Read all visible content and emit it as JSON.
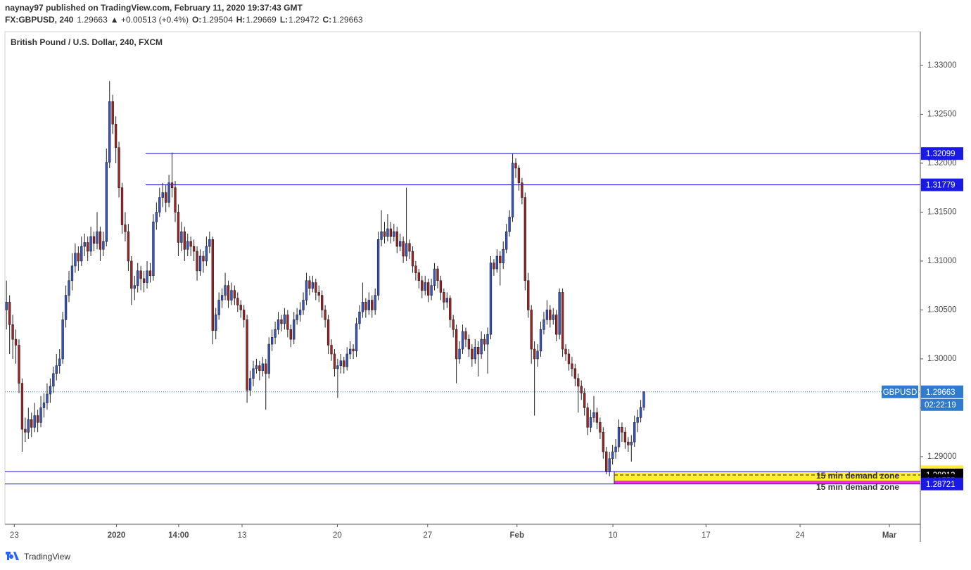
{
  "header": {
    "publisher": "naynay97 published on TradingView.com, February 11, 2020 19:37:43 GMT",
    "symbol": "FX:GBPUSD, 240",
    "last": "1.29663",
    "change": "▲ +0.00513 (+0.4%)",
    "ohlc": [
      {
        "key": "O:",
        "value": "1.29504"
      },
      {
        "key": "H:",
        "value": "1.29669"
      },
      {
        "key": "L:",
        "value": "1.29472"
      },
      {
        "key": "C:",
        "value": "1.29663"
      }
    ]
  },
  "footer": {
    "brand": "TradingView"
  },
  "chart_data": {
    "type": "candlestick",
    "title": "British Pound / U.S. Dollar, 240, FXCM",
    "up_color": "#3556c8",
    "down_color": "#a32222",
    "level_color": "#1a1ae6",
    "ylim": [
      1.28309,
      1.33345
    ],
    "yticks": [
      {
        "value": 1.29,
        "label": "1.29000"
      },
      {
        "value": 1.295,
        "label": "1.29500"
      },
      {
        "value": 1.3,
        "label": "1.30000"
      },
      {
        "value": 1.305,
        "label": "1.30500"
      },
      {
        "value": 1.31,
        "label": "1.31000"
      },
      {
        "value": 1.315,
        "label": "1.31500"
      },
      {
        "value": 1.32,
        "label": "1.32000"
      },
      {
        "value": 1.325,
        "label": "1.32500"
      },
      {
        "value": 1.33,
        "label": "1.33000"
      }
    ],
    "xlim": [
      -0.5,
      292.5
    ],
    "xticks": [
      {
        "value": 2.5,
        "label": "23"
      },
      {
        "value": 35.2,
        "label": "2020"
      },
      {
        "value": 55.1,
        "label": "14:00"
      },
      {
        "value": 75.4,
        "label": "13"
      },
      {
        "value": 105.9,
        "label": "20"
      },
      {
        "value": 134.8,
        "label": "27"
      },
      {
        "value": 163.4,
        "label": "Feb"
      },
      {
        "value": 194.1,
        "label": "10"
      },
      {
        "value": 223.9,
        "label": "17"
      },
      {
        "value": 254,
        "label": "24"
      },
      {
        "value": 282.6,
        "label": "Mar"
      }
    ],
    "price_levels": [
      {
        "value": 1.32099,
        "label": "1.32099"
      },
      {
        "value": 1.31779,
        "label": "1.31779"
      }
    ],
    "demand_zone": {
      "text": "15 min demand zone",
      "bounds": [
        {
          "value": 1.28847,
          "label": "1.28847"
        },
        {
          "value": 1.28813,
          "label": "1.28813"
        },
        {
          "value": 1.28755,
          "label": "1.28755"
        },
        {
          "value": 1.28721,
          "label": "1.28721"
        }
      ],
      "colors": [
        "#ffee33",
        "#e633e6"
      ]
    },
    "last_price": {
      "symbol": "GBPUSD",
      "price": {
        "value": 1.29663,
        "label": "1.29663"
      },
      "countdown": "02:22:19",
      "color": "#2f7bd0"
    },
    "candles": [
      [
        1.305,
        1.308,
        1.303,
        1.3058
      ],
      [
        1.3058,
        1.3065,
        1.3005,
        1.3035
      ],
      [
        1.3035,
        1.3045,
        1.3,
        1.302
      ],
      [
        1.302,
        1.303,
        1.2995,
        1.3014
      ],
      [
        1.3014,
        1.302,
        1.2965,
        1.2975
      ],
      [
        1.2975,
        1.298,
        1.2905,
        1.2928
      ],
      [
        1.2928,
        1.294,
        1.2915,
        1.2925
      ],
      [
        1.2925,
        1.295,
        1.2918,
        1.2938
      ],
      [
        1.2938,
        1.2945,
        1.292,
        1.293
      ],
      [
        1.293,
        1.2955,
        1.2925,
        1.2942
      ],
      [
        1.2942,
        1.2948,
        1.2925,
        1.2935
      ],
      [
        1.2935,
        1.2962,
        1.293,
        1.295
      ],
      [
        1.295,
        1.2965,
        1.294,
        1.2955
      ],
      [
        1.2955,
        1.2975,
        1.2948,
        1.2964
      ],
      [
        1.2964,
        1.298,
        1.2955,
        1.2972
      ],
      [
        1.2972,
        1.2992,
        1.2965,
        1.2985
      ],
      [
        1.2985,
        1.3005,
        1.2978,
        1.2993
      ],
      [
        1.2993,
        1.301,
        1.2985,
        1.3
      ],
      [
        1.3,
        1.3048,
        1.2995,
        1.304
      ],
      [
        1.304,
        1.3075,
        1.3032,
        1.3065
      ],
      [
        1.3065,
        1.309,
        1.3058,
        1.308
      ],
      [
        1.308,
        1.3108,
        1.307,
        1.3095
      ],
      [
        1.3095,
        1.3118,
        1.3088,
        1.3108
      ],
      [
        1.3108,
        1.3115,
        1.309,
        1.31
      ],
      [
        1.31,
        1.3125,
        1.3095,
        1.3115
      ],
      [
        1.3115,
        1.3128,
        1.3105,
        1.3119
      ],
      [
        1.3119,
        1.3125,
        1.31,
        1.311
      ],
      [
        1.311,
        1.3135,
        1.3105,
        1.3125
      ],
      [
        1.3125,
        1.313,
        1.311,
        1.3118
      ],
      [
        1.3118,
        1.315,
        1.3112,
        1.313
      ],
      [
        1.313,
        1.3135,
        1.31,
        1.3112
      ],
      [
        1.3112,
        1.313,
        1.3105,
        1.312
      ],
      [
        1.312,
        1.3215,
        1.3115,
        1.3201
      ],
      [
        1.3201,
        1.3284,
        1.3195,
        1.3263
      ],
      [
        1.3263,
        1.327,
        1.323,
        1.324
      ],
      [
        1.324,
        1.3248,
        1.32,
        1.3216
      ],
      [
        1.3216,
        1.3222,
        1.3165,
        1.3175
      ],
      [
        1.3175,
        1.318,
        1.3128,
        1.3137
      ],
      [
        1.3137,
        1.315,
        1.312,
        1.313
      ],
      [
        1.313,
        1.3138,
        1.309,
        1.31
      ],
      [
        1.31,
        1.3105,
        1.3055,
        1.3072
      ],
      [
        1.3072,
        1.3085,
        1.306,
        1.3075
      ],
      [
        1.3075,
        1.3098,
        1.3068,
        1.309
      ],
      [
        1.309,
        1.3095,
        1.307,
        1.3082
      ],
      [
        1.3082,
        1.309,
        1.3068,
        1.3078
      ],
      [
        1.3078,
        1.31,
        1.3072,
        1.309
      ],
      [
        1.309,
        1.3098,
        1.3078,
        1.3085
      ],
      [
        1.3085,
        1.3148,
        1.308,
        1.314
      ],
      [
        1.314,
        1.316,
        1.3132,
        1.315
      ],
      [
        1.315,
        1.3175,
        1.3145,
        1.3165
      ],
      [
        1.3165,
        1.318,
        1.3155,
        1.317
      ],
      [
        1.317,
        1.3178,
        1.315,
        1.316
      ],
      [
        1.316,
        1.3188,
        1.3155,
        1.318
      ],
      [
        1.318,
        1.3211,
        1.3165,
        1.3175
      ],
      [
        1.3175,
        1.3182,
        1.314,
        1.315
      ],
      [
        1.315,
        1.3158,
        1.3105,
        1.3119
      ],
      [
        1.3119,
        1.314,
        1.311,
        1.313
      ],
      [
        1.313,
        1.3135,
        1.31,
        1.3112
      ],
      [
        1.3112,
        1.3128,
        1.3105,
        1.312
      ],
      [
        1.312,
        1.3125,
        1.3105,
        1.3115
      ],
      [
        1.3115,
        1.3122,
        1.31,
        1.311
      ],
      [
        1.311,
        1.3115,
        1.308,
        1.309
      ],
      [
        1.309,
        1.3112,
        1.3085,
        1.3105
      ],
      [
        1.3105,
        1.311,
        1.3088,
        1.31
      ],
      [
        1.31,
        1.3125,
        1.3095,
        1.3115
      ],
      [
        1.3115,
        1.313,
        1.3108,
        1.3122
      ],
      [
        1.3122,
        1.3125,
        1.3015,
        1.3029
      ],
      [
        1.3029,
        1.3052,
        1.302,
        1.3045
      ],
      [
        1.3045,
        1.3068,
        1.304,
        1.306
      ],
      [
        1.306,
        1.3072,
        1.3052,
        1.3065
      ],
      [
        1.3065,
        1.3088,
        1.306,
        1.3075
      ],
      [
        1.3075,
        1.308,
        1.3052,
        1.306
      ],
      [
        1.306,
        1.3078,
        1.3055,
        1.307
      ],
      [
        1.307,
        1.3075,
        1.3055,
        1.3062
      ],
      [
        1.3062,
        1.3068,
        1.3048,
        1.3055
      ],
      [
        1.3055,
        1.306,
        1.3042,
        1.305
      ],
      [
        1.305,
        1.3055,
        1.3032,
        1.304
      ],
      [
        1.304,
        1.3045,
        1.2955,
        1.2968
      ],
      [
        1.2968,
        1.2988,
        1.2962,
        1.298
      ],
      [
        1.298,
        1.2998,
        1.2972,
        1.299
      ],
      [
        1.299,
        1.3,
        1.2985,
        1.2993
      ],
      [
        1.2993,
        1.2998,
        1.2978,
        1.2988
      ],
      [
        1.2988,
        1.3002,
        1.2982,
        1.2995
      ],
      [
        1.2995,
        1.3,
        1.2948,
        1.2985
      ],
      [
        1.2985,
        1.3022,
        1.298,
        1.3015
      ],
      [
        1.3015,
        1.303,
        1.3008,
        1.3022
      ],
      [
        1.3022,
        1.3038,
        1.3015,
        1.303
      ],
      [
        1.303,
        1.3048,
        1.3025,
        1.304
      ],
      [
        1.304,
        1.3045,
        1.3028,
        1.3036
      ],
      [
        1.3036,
        1.3052,
        1.303,
        1.3045
      ],
      [
        1.3045,
        1.305,
        1.3022,
        1.303
      ],
      [
        1.303,
        1.3035,
        1.3012,
        1.302
      ],
      [
        1.302,
        1.3048,
        1.3015,
        1.304
      ],
      [
        1.304,
        1.3052,
        1.3035,
        1.3045
      ],
      [
        1.3045,
        1.3058,
        1.3038,
        1.305
      ],
      [
        1.305,
        1.3068,
        1.3045,
        1.306
      ],
      [
        1.306,
        1.3088,
        1.3055,
        1.308
      ],
      [
        1.308,
        1.3085,
        1.3065,
        1.3072
      ],
      [
        1.3072,
        1.3085,
        1.3068,
        1.3078
      ],
      [
        1.3078,
        1.3082,
        1.306,
        1.3068
      ],
      [
        1.3068,
        1.3075,
        1.3058,
        1.3065
      ],
      [
        1.3065,
        1.307,
        1.3042,
        1.305
      ],
      [
        1.305,
        1.3055,
        1.3032,
        1.304
      ],
      [
        1.304,
        1.3045,
        1.3005,
        1.3014
      ],
      [
        1.3014,
        1.302,
        1.2998,
        1.3005
      ],
      [
        1.3005,
        1.301,
        1.2982,
        1.299
      ],
      [
        1.299,
        1.3,
        1.296,
        1.2993
      ],
      [
        1.2993,
        1.3005,
        1.2985,
        1.2998
      ],
      [
        1.2998,
        1.3002,
        1.2985,
        1.2992
      ],
      [
        1.2992,
        1.3012,
        1.2988,
        1.3005
      ],
      [
        1.3005,
        1.3018,
        1.3,
        1.301
      ],
      [
        1.301,
        1.3015,
        1.3,
        1.3008
      ],
      [
        1.3008,
        1.3042,
        1.3002,
        1.3036
      ],
      [
        1.3036,
        1.3055,
        1.303,
        1.3048
      ],
      [
        1.3048,
        1.3078,
        1.3042,
        1.3058
      ],
      [
        1.3058,
        1.3062,
        1.3042,
        1.305
      ],
      [
        1.305,
        1.3068,
        1.3045,
        1.306
      ],
      [
        1.306,
        1.3065,
        1.3042,
        1.305
      ],
      [
        1.305,
        1.3072,
        1.3045,
        1.3065
      ],
      [
        1.3065,
        1.313,
        1.306,
        1.3122
      ],
      [
        1.3122,
        1.3152,
        1.3115,
        1.313
      ],
      [
        1.313,
        1.314,
        1.3118,
        1.3125
      ],
      [
        1.3125,
        1.3148,
        1.312,
        1.3133
      ],
      [
        1.3133,
        1.314,
        1.3118,
        1.3125
      ],
      [
        1.3125,
        1.3138,
        1.312,
        1.313
      ],
      [
        1.313,
        1.3135,
        1.3108,
        1.3115
      ],
      [
        1.3115,
        1.3128,
        1.311,
        1.312
      ],
      [
        1.312,
        1.3125,
        1.3098,
        1.3105
      ],
      [
        1.3105,
        1.3175,
        1.31,
        1.3118
      ],
      [
        1.3118,
        1.3122,
        1.3102,
        1.311
      ],
      [
        1.311,
        1.3115,
        1.3088,
        1.3095
      ],
      [
        1.3095,
        1.31,
        1.308,
        1.3088
      ],
      [
        1.3088,
        1.3092,
        1.3072,
        1.308
      ],
      [
        1.308,
        1.3085,
        1.3062,
        1.307
      ],
      [
        1.307,
        1.3085,
        1.3065,
        1.3078
      ],
      [
        1.3078,
        1.3082,
        1.3058,
        1.3065
      ],
      [
        1.3065,
        1.3082,
        1.306,
        1.3075
      ],
      [
        1.3075,
        1.3098,
        1.307,
        1.3092
      ],
      [
        1.3092,
        1.3095,
        1.3072,
        1.308
      ],
      [
        1.308,
        1.3085,
        1.306,
        1.3068
      ],
      [
        1.3068,
        1.3072,
        1.305,
        1.3058
      ],
      [
        1.3058,
        1.3068,
        1.3052,
        1.3062
      ],
      [
        1.3062,
        1.3065,
        1.3032,
        1.304
      ],
      [
        1.304,
        1.3045,
        1.3022,
        1.303
      ],
      [
        1.303,
        1.3035,
        1.2975,
        1.3
      ],
      [
        1.3,
        1.3018,
        1.2995,
        1.301
      ],
      [
        1.301,
        1.3035,
        1.3005,
        1.3028
      ],
      [
        1.3028,
        1.3032,
        1.3012,
        1.302
      ],
      [
        1.302,
        1.3025,
        1.3002,
        1.301
      ],
      [
        1.301,
        1.3015,
        1.2992,
        1.3
      ],
      [
        1.3,
        1.302,
        1.2995,
        1.3012
      ],
      [
        1.3012,
        1.3018,
        1.2982,
        1.3005
      ],
      [
        1.3005,
        1.3028,
        1.3,
        1.302
      ],
      [
        1.302,
        1.3025,
        1.3008,
        1.3015
      ],
      [
        1.3015,
        1.3032,
        1.2985,
        1.3025
      ],
      [
        1.3025,
        1.3105,
        1.302,
        1.3098
      ],
      [
        1.3098,
        1.3102,
        1.3085,
        1.3092
      ],
      [
        1.3092,
        1.3112,
        1.3088,
        1.3105
      ],
      [
        1.3105,
        1.311,
        1.3075,
        1.3098
      ],
      [
        1.3098,
        1.312,
        1.3092,
        1.3112
      ],
      [
        1.3112,
        1.3138,
        1.3108,
        1.313
      ],
      [
        1.313,
        1.3152,
        1.3125,
        1.3145
      ],
      [
        1.3145,
        1.32099,
        1.314,
        1.32
      ],
      [
        1.32,
        1.3205,
        1.3185,
        1.3195
      ],
      [
        1.3195,
        1.3198,
        1.3172,
        1.318
      ],
      [
        1.318,
        1.3185,
        1.3158,
        1.3165
      ],
      [
        1.3165,
        1.317,
        1.307,
        1.308
      ],
      [
        1.308,
        1.3088,
        1.3042,
        1.305
      ],
      [
        1.305,
        1.3055,
        1.2995,
        1.301
      ],
      [
        1.301,
        1.3018,
        1.2942,
        1.3
      ],
      [
        1.3,
        1.3015,
        1.2992,
        1.3008
      ],
      [
        1.3008,
        1.3038,
        1.3002,
        1.303
      ],
      [
        1.303,
        1.3048,
        1.3025,
        1.304
      ],
      [
        1.304,
        1.306,
        1.3035,
        1.305
      ],
      [
        1.305,
        1.3055,
        1.3032,
        1.304
      ],
      [
        1.304,
        1.3052,
        1.3035,
        1.3045
      ],
      [
        1.3045,
        1.305,
        1.3018,
        1.3025
      ],
      [
        1.3025,
        1.3072,
        1.302,
        1.3068
      ],
      [
        1.3068,
        1.3072,
        1.3002,
        1.301
      ],
      [
        1.301,
        1.3015,
        1.2998,
        1.3005
      ],
      [
        1.3005,
        1.301,
        1.2988,
        1.2995
      ],
      [
        1.2995,
        1.3002,
        1.2982,
        1.299
      ],
      [
        1.299,
        1.2995,
        1.2972,
        1.298
      ],
      [
        1.298,
        1.2985,
        1.2945,
        1.2972
      ],
      [
        1.2972,
        1.2978,
        1.2958,
        1.2965
      ],
      [
        1.2965,
        1.297,
        1.2942,
        1.295
      ],
      [
        1.295,
        1.2955,
        1.2922,
        1.293
      ],
      [
        1.293,
        1.2948,
        1.2925,
        1.294
      ],
      [
        1.294,
        1.2962,
        1.2935,
        1.2945
      ],
      [
        1.2945,
        1.295,
        1.2928,
        1.2935
      ],
      [
        1.2935,
        1.294,
        1.2918,
        1.2925
      ],
      [
        1.2925,
        1.293,
        1.2898,
        1.2905
      ],
      [
        1.2905,
        1.291,
        1.2882,
        1.2885
      ],
      [
        1.2885,
        1.2905,
        1.288,
        1.2898
      ],
      [
        1.2898,
        1.2912,
        1.2892,
        1.2905
      ],
      [
        1.2905,
        1.2918,
        1.2898,
        1.291
      ],
      [
        1.291,
        1.2938,
        1.2905,
        1.293
      ],
      [
        1.293,
        1.2935,
        1.2915,
        1.2925
      ],
      [
        1.2925,
        1.293,
        1.2908,
        1.2915
      ],
      [
        1.2915,
        1.292,
        1.2905,
        1.2912
      ],
      [
        1.2912,
        1.2922,
        1.2895,
        1.2915
      ],
      [
        1.2915,
        1.2942,
        1.291,
        1.2935
      ],
      [
        1.2935,
        1.2948,
        1.2925,
        1.294
      ],
      [
        1.294,
        1.2958,
        1.2935,
        1.29504
      ],
      [
        1.29504,
        1.29669,
        1.29472,
        1.29663
      ]
    ]
  }
}
